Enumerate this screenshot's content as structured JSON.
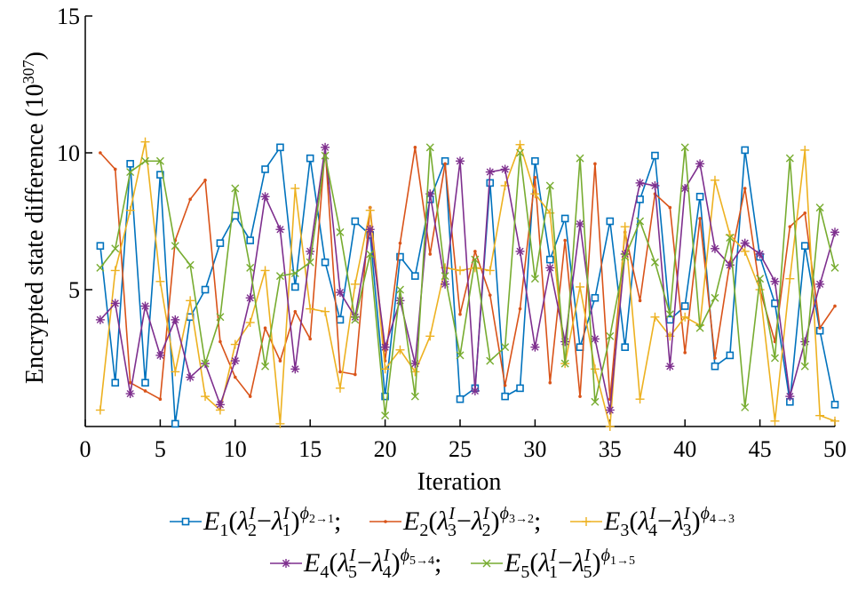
{
  "chart_data": {
    "type": "line",
    "title": "",
    "xlabel": "Iteration",
    "ylabel_main": "Encrypted state difference (10",
    "ylabel_exp": "307",
    "ylabel_close": ")",
    "xlim": [
      0,
      50
    ],
    "ylim": [
      0,
      15
    ],
    "xticks": [
      0,
      5,
      10,
      15,
      20,
      25,
      30,
      35,
      40,
      45,
      50
    ],
    "yticks": [
      5,
      10,
      15
    ],
    "grid": false,
    "legend_position": "bottom",
    "x": [
      1,
      2,
      3,
      4,
      5,
      6,
      7,
      8,
      9,
      10,
      11,
      12,
      13,
      14,
      15,
      16,
      17,
      18,
      19,
      20,
      21,
      22,
      23,
      24,
      25,
      26,
      27,
      28,
      29,
      30,
      31,
      32,
      33,
      34,
      35,
      36,
      37,
      38,
      39,
      40,
      41,
      42,
      43,
      44,
      45,
      46,
      47,
      48,
      49,
      50
    ],
    "series": [
      {
        "name": "E1",
        "legend": {
          "E": "E",
          "sub": "1",
          "l1": "λ",
          "i1": "2",
          "l2": "λ",
          "i2": "1",
          "phi": "ϕ",
          "phisub": "2→1",
          "sep": ";"
        },
        "color": "#0072bd",
        "marker": "square",
        "values": [
          6.6,
          1.6,
          9.6,
          1.6,
          9.2,
          0.1,
          4.0,
          5.0,
          6.7,
          7.7,
          6.8,
          9.4,
          10.2,
          5.1,
          9.8,
          6.0,
          3.9,
          7.5,
          7.0,
          1.1,
          6.2,
          5.5,
          8.3,
          9.7,
          1.0,
          1.4,
          8.9,
          1.1,
          1.4,
          9.7,
          6.1,
          7.6,
          2.9,
          4.7,
          7.5,
          2.9,
          8.3,
          9.9,
          3.9,
          4.4,
          8.4,
          2.2,
          2.6,
          10.1,
          6.2,
          4.5,
          0.9,
          6.6,
          3.5,
          0.8
        ]
      },
      {
        "name": "E2",
        "legend": {
          "E": "E",
          "sub": "2",
          "l1": "λ",
          "i1": "3",
          "l2": "λ",
          "i2": "2",
          "phi": "ϕ",
          "phisub": "3→2",
          "sep": ";"
        },
        "color": "#d95319",
        "marker": "dot",
        "values": [
          10.0,
          9.4,
          1.6,
          1.3,
          1.0,
          6.8,
          8.3,
          9.0,
          3.1,
          1.8,
          1.1,
          3.6,
          2.4,
          4.2,
          3.2,
          10.2,
          2.0,
          1.9,
          8.0,
          2.4,
          6.7,
          10.2,
          6.3,
          9.6,
          4.1,
          6.4,
          4.8,
          1.5,
          4.3,
          9.1,
          1.6,
          6.8,
          1.1,
          9.6,
          1.0,
          7.1,
          4.6,
          8.5,
          8.0,
          2.7,
          7.6,
          2.5,
          6.0,
          8.7,
          5.0,
          3.1,
          7.3,
          7.8,
          3.6,
          4.4
        ]
      },
      {
        "name": "E3",
        "legend": {
          "E": "E",
          "sub": "3",
          "l1": "λ",
          "i1": "4",
          "l2": "λ",
          "i2": "3",
          "phi": "ϕ",
          "phisub": "4→3",
          "sep": ""
        },
        "color": "#edb120",
        "marker": "plus",
        "values": [
          0.6,
          5.7,
          7.9,
          10.4,
          5.3,
          2.0,
          4.6,
          1.1,
          0.6,
          3.0,
          3.8,
          5.7,
          0.1,
          8.7,
          4.3,
          4.2,
          1.4,
          5.2,
          7.9,
          2.1,
          2.8,
          2.0,
          3.3,
          5.8,
          5.7,
          5.8,
          5.7,
          8.8,
          10.3,
          8.5,
          7.8,
          2.3,
          5.1,
          2.1,
          0.0,
          7.3,
          1.0,
          4.0,
          3.3,
          4.0,
          3.7,
          9.0,
          7.0,
          6.4,
          5.0,
          0.2,
          5.4,
          10.1,
          0.4,
          0.2
        ]
      },
      {
        "name": "E4",
        "legend": {
          "E": "E",
          "sub": "4",
          "l1": "λ",
          "i1": "5",
          "l2": "λ",
          "i2": "4",
          "phi": "ϕ",
          "phisub": "5→4",
          "sep": ";"
        },
        "color": "#7e2f8e",
        "marker": "asterisk",
        "values": [
          3.9,
          4.5,
          1.2,
          4.4,
          2.6,
          3.9,
          1.8,
          2.3,
          0.8,
          2.4,
          4.7,
          8.4,
          7.2,
          2.1,
          6.4,
          10.2,
          4.9,
          4.0,
          7.2,
          2.9,
          4.6,
          2.3,
          8.5,
          5.2,
          9.7,
          1.3,
          9.3,
          9.4,
          6.4,
          2.9,
          5.8,
          3.1,
          7.4,
          3.2,
          0.6,
          6.3,
          8.9,
          8.8,
          2.2,
          8.7,
          9.6,
          6.5,
          5.9,
          6.7,
          6.3,
          5.3,
          1.1,
          3.1,
          5.2,
          7.1
        ]
      },
      {
        "name": "E5",
        "legend": {
          "E": "E",
          "sub": "5",
          "l1": "λ",
          "i1": "1",
          "l2": "λ",
          "i2": "5",
          "phi": "ϕ",
          "phisub": "1→5",
          "sep": ""
        },
        "color": "#77ac30",
        "marker": "x",
        "values": [
          5.8,
          6.5,
          9.3,
          9.7,
          9.7,
          6.6,
          5.9,
          2.3,
          4.0,
          8.7,
          5.8,
          2.2,
          5.5,
          5.6,
          6.0,
          9.9,
          7.1,
          3.9,
          6.3,
          0.4,
          5.0,
          1.1,
          10.2,
          5.5,
          2.6,
          6.1,
          2.4,
          2.9,
          10.0,
          5.4,
          8.8,
          2.3,
          9.8,
          0.9,
          3.3,
          6.2,
          7.5,
          6.0,
          4.1,
          10.2,
          3.6,
          4.7,
          6.9,
          0.7,
          5.4,
          2.5,
          9.8,
          2.2,
          8.0,
          5.8
        ]
      }
    ]
  }
}
